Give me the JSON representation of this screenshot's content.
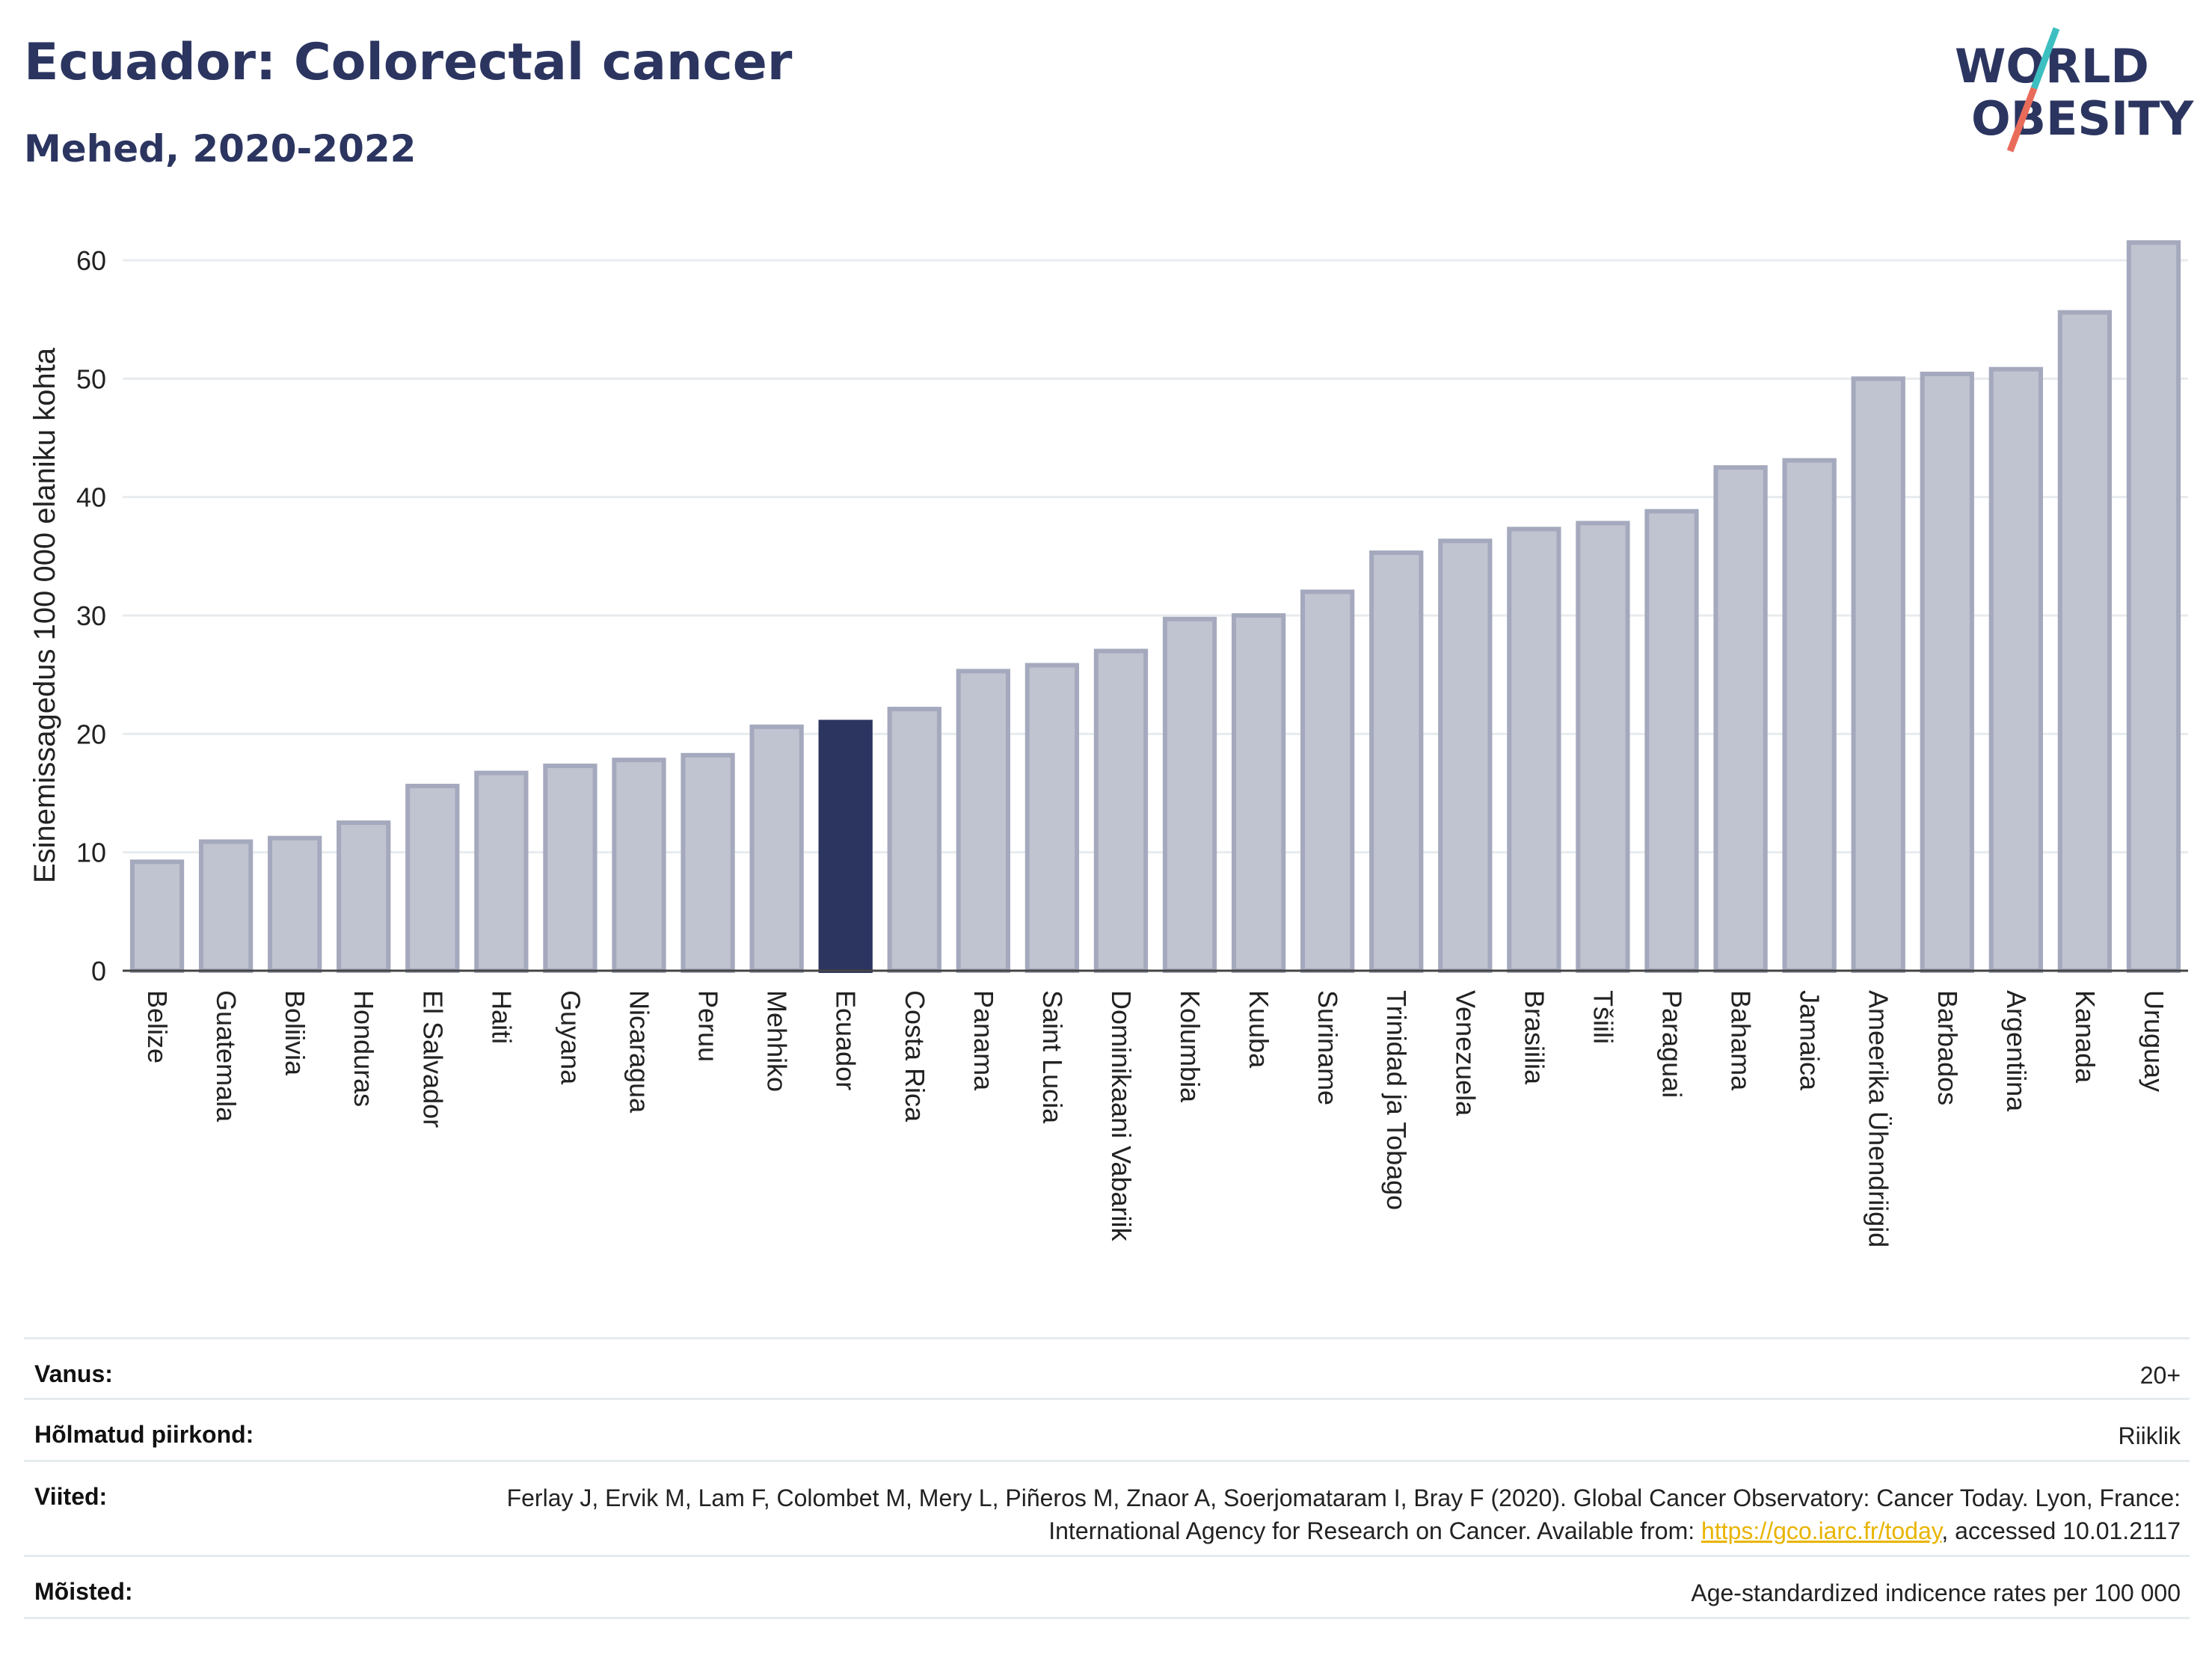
{
  "header": {
    "title": "Ecuador: Colorectal cancer",
    "subtitle": "Mehed, 2020-2022"
  },
  "logo": {
    "line1": "WORLD",
    "line2": "OBESITY",
    "accent_teal": "#3cbfc0",
    "accent_coral": "#e96b5a",
    "text_color": "#2b3560"
  },
  "chart_data": {
    "type": "bar",
    "title": "Ecuador: Colorectal cancer",
    "subtitle": "Mehed, 2020-2022",
    "ylabel": "Esinemissagedus 100 000 elaniku kohta",
    "xlabel": "",
    "ylim": [
      0,
      63
    ],
    "yticks": [
      0,
      10,
      20,
      30,
      40,
      50,
      60
    ],
    "grid": true,
    "highlight": "Ecuador",
    "bar_color": "#c0c3d0",
    "bar_edge_color": "#a5a9bd",
    "highlight_color": "#2b3560",
    "categories": [
      "Belize",
      "Guatemala",
      "Boliivia",
      "Honduras",
      "El Salvador",
      "Haiti",
      "Guyana",
      "Nicaragua",
      "Peruu",
      "Mehhiko",
      "Ecuador",
      "Costa Rica",
      "Panama",
      "Saint Lucia",
      "Dominikaani Vabariik",
      "Kolumbia",
      "Kuuba",
      "Suriname",
      "Trinidad ja Tobago",
      "Venezuela",
      "Brasiilia",
      "Tšiili",
      "Paraguai",
      "Bahama",
      "Jamaica",
      "Ameerika Ühendriigid",
      "Barbados",
      "Argentiina",
      "Kanada",
      "Uruguay"
    ],
    "values": [
      9.2,
      10.9,
      11.2,
      12.5,
      15.6,
      16.7,
      17.3,
      17.8,
      18.2,
      20.6,
      21.0,
      22.1,
      25.3,
      25.8,
      27.0,
      29.7,
      30.0,
      32.0,
      35.3,
      36.3,
      37.3,
      37.8,
      38.8,
      42.5,
      43.1,
      50.0,
      50.4,
      50.8,
      55.6,
      61.5
    ]
  },
  "meta": {
    "rows": [
      {
        "label": "Vanus:",
        "value": "20+"
      },
      {
        "label": "Hõlmatud piirkond:",
        "value": "Riiklik"
      },
      {
        "label": "Viited:",
        "value_before": "Ferlay J, Ervik M, Lam F, Colombet M, Mery L, Piñeros M, Znaor A, Soerjomataram I, Bray F (2020). Global Cancer Observatory: Cancer Today. Lyon, France: International Agency for Research on Cancer. Available from: ",
        "link": "https://gco.iarc.fr/today",
        "value_after": ", accessed 10.01.2117"
      },
      {
        "label": "Mõisted:",
        "value": "Age-standardized indicence rates per 100 000"
      }
    ]
  }
}
